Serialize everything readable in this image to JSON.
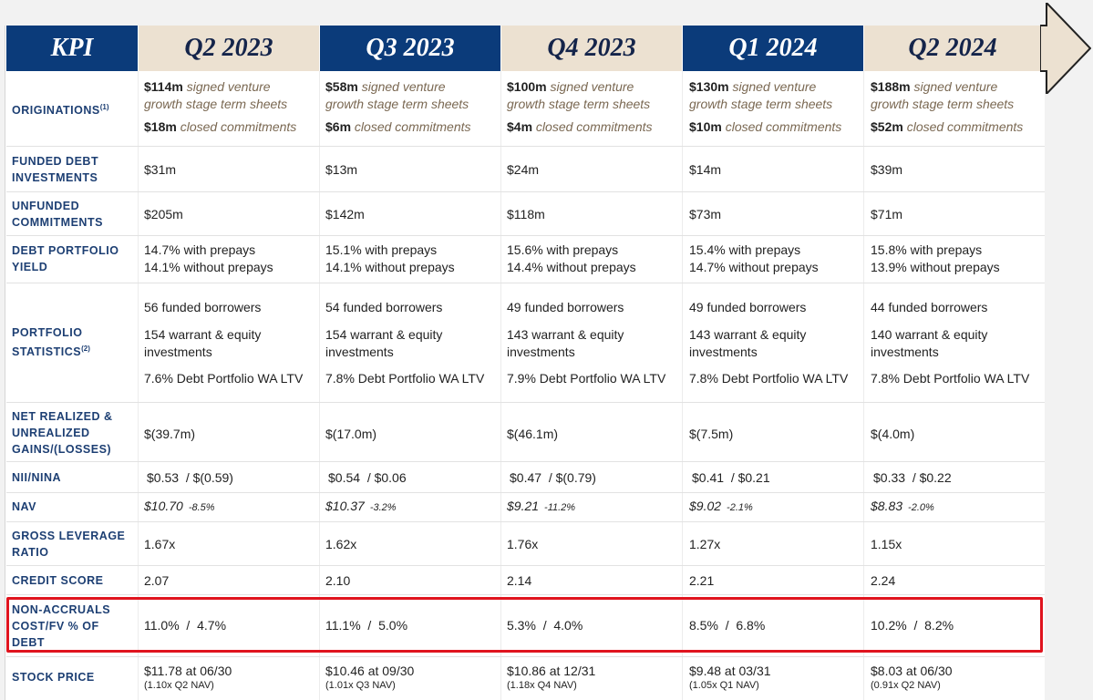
{
  "header": {
    "kpi_label": "KPI",
    "quarters": [
      "Q2 2023",
      "Q3 2023",
      "Q4 2023",
      "Q1 2024",
      "Q2 2024"
    ]
  },
  "colors": {
    "header_dark": "#0b3b7a",
    "header_light": "#ece1d1",
    "label_blue": "#1d3f73",
    "highlight_red": "#e0141e",
    "italic_brown": "#7a6852"
  },
  "rows": {
    "originations": {
      "label": "ORIGINATIONS",
      "footnote": "(1)",
      "signed_suffix": "signed venture",
      "signed_suffix2": "growth stage term sheets",
      "closed_suffix": "closed commitments",
      "signed": [
        "$114m",
        "$58m",
        "$100m",
        "$130m",
        "$188m"
      ],
      "closed": [
        "$18m",
        "$6m",
        "$4m",
        "$10m",
        "$52m"
      ]
    },
    "funded": {
      "label1": "FUNDED DEBT",
      "label2": "INVESTMENTS",
      "values": [
        "$31m",
        "$13m",
        "$24m",
        "$14m",
        "$39m"
      ]
    },
    "unfunded": {
      "label1": "UNFUNDED",
      "label2": "COMMITMENTS",
      "values": [
        "$205m",
        "$142m",
        "$118m",
        "$73m",
        "$71m"
      ]
    },
    "yield": {
      "label1": "DEBT PORTFOLIO",
      "label2": "YIELD",
      "with": [
        "14.7% with prepays",
        "15.1% with prepays",
        "15.6% with prepays",
        "15.4% with prepays",
        "15.8% with prepays"
      ],
      "without": [
        "14.1% without prepays",
        "14.1% without prepays",
        "14.4% without prepays",
        "14.7% without prepays",
        "13.9% without prepays"
      ]
    },
    "stats": {
      "label1": "PORTFOLIO",
      "label2": "STATISTICS",
      "footnote": "(2)",
      "borrowers": [
        "56 funded borrowers",
        "54 funded borrowers",
        "49 funded borrowers",
        "49 funded borrowers",
        "44 funded borrowers"
      ],
      "warrant1": [
        "154 warrant & equity",
        "154 warrant & equity",
        "143 warrant & equity",
        "143 warrant & equity",
        "140 warrant & equity"
      ],
      "warrant2": "investments",
      "ltv": [
        "7.6% Debt Portfolio WA LTV",
        "7.8% Debt Portfolio WA LTV",
        "7.9% Debt Portfolio WA LTV",
        "7.8% Debt Portfolio WA LTV",
        "7.8% Debt Portfolio WA LTV"
      ]
    },
    "gains": {
      "label1": "NET REALIZED &",
      "label2": "UNREALIZED",
      "label3": "GAINS/(LOSSES)",
      "values": [
        "$(39.7m)",
        "$(17.0m)",
        "$(46.1m)",
        "$(7.5m)",
        "$(4.0m)"
      ]
    },
    "nii": {
      "label": "NII/NINA",
      "values": [
        "$0.53  / $(0.59)",
        "$0.54  / $0.06",
        "$0.47  / $(0.79)",
        "$0.41  / $0.21",
        "$0.33  / $0.22"
      ]
    },
    "nav": {
      "label": "NAV",
      "values": [
        "$10.70",
        "$10.37",
        "$9.21",
        "$9.02",
        "$8.83"
      ],
      "changes": [
        "-8.5%",
        "-3.2%",
        "-11.2%",
        "-2.1%",
        "-2.0%"
      ]
    },
    "leverage": {
      "label1": "GROSS LEVERAGE",
      "label2": "RATIO",
      "values": [
        "1.67x",
        "1.62x",
        "1.76x",
        "1.27x",
        "1.15x"
      ]
    },
    "credit": {
      "label": "CREDIT SCORE",
      "values": [
        "2.07",
        "2.10",
        "2.14",
        "2.21",
        "2.24"
      ]
    },
    "nonaccruals": {
      "label1": "NON-ACCRUALS",
      "label2": "COST/FV % OF",
      "label3": "DEBT",
      "values": [
        "11.0%  /  4.7%",
        "11.1%  /  5.0%",
        "5.3%  /  4.0%",
        "8.5%  /  6.8%",
        "10.2%  /  8.2%"
      ]
    },
    "stock": {
      "label": "STOCK PRICE",
      "values": [
        "$11.78 at 06/30",
        "$10.46 at 09/30",
        "$10.86 at 12/31",
        "$9.48 at 03/31",
        "$8.03 at 06/30"
      ],
      "notes": [
        "(1.10x Q2 NAV)",
        "(1.01x Q3 NAV)",
        "(1.18x Q4 NAV)",
        "(1.05x Q1 NAV)",
        "(0.91x Q2 NAV)"
      ]
    }
  }
}
